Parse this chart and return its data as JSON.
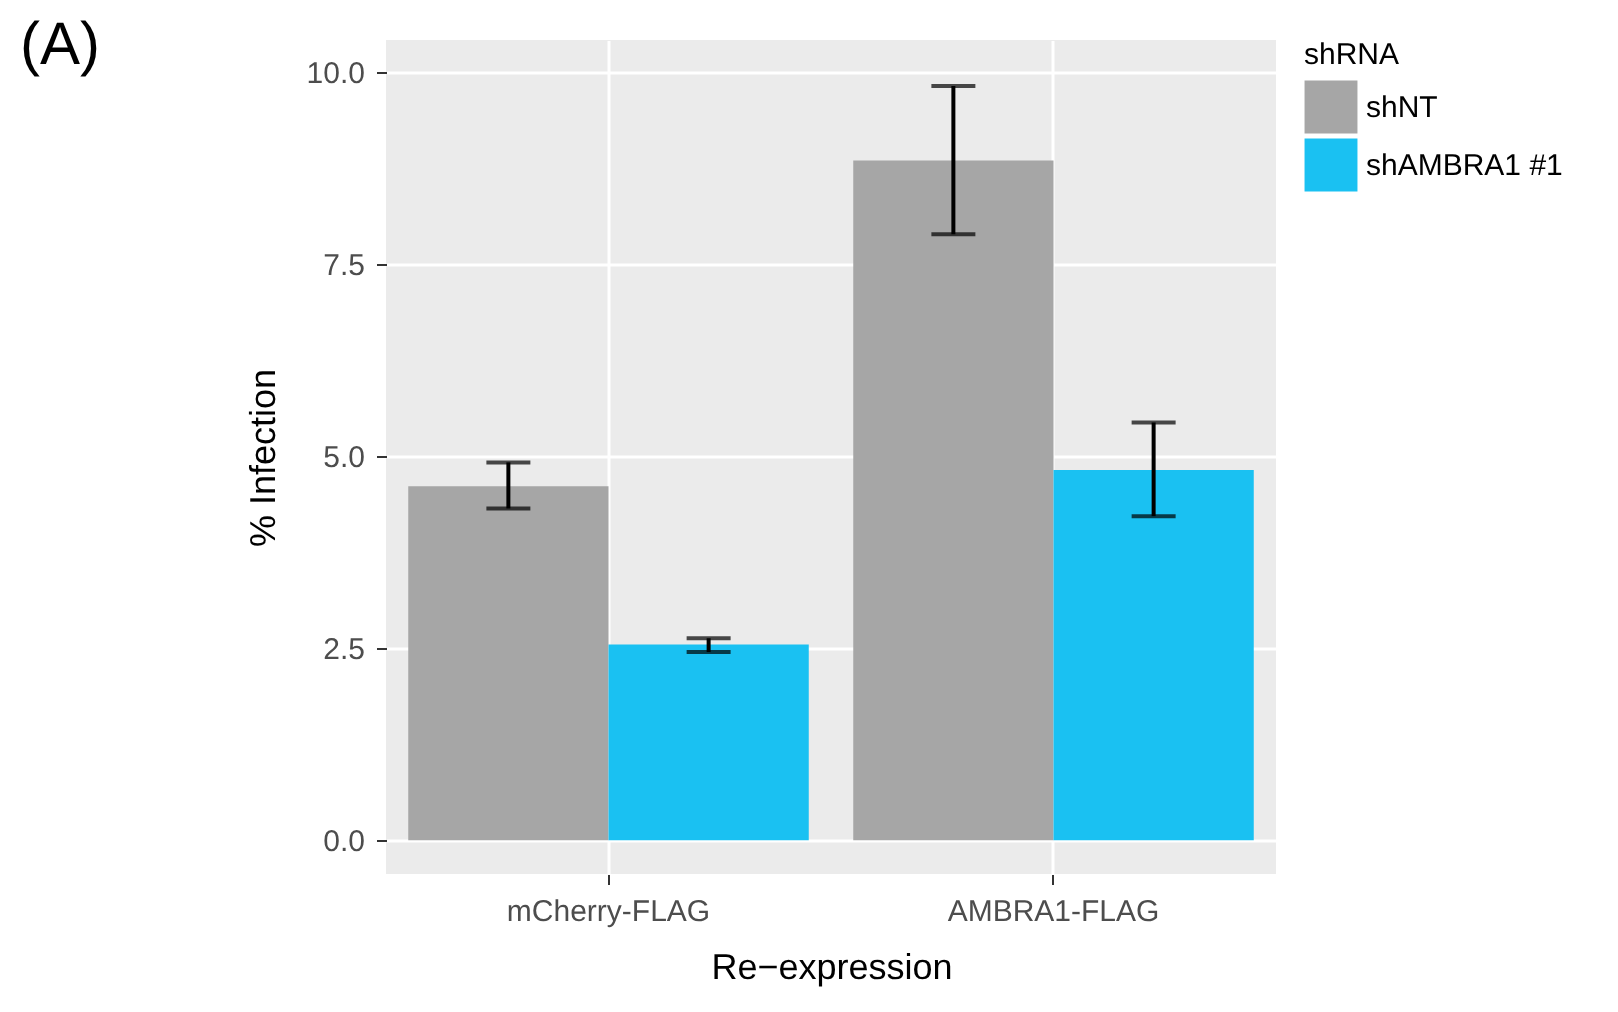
{
  "chart_data": {
    "type": "bar",
    "xlabel": "Re−expression",
    "ylabel": "% Infection",
    "legend_title": "shRNA",
    "annotations": [
      "(A)"
    ],
    "categories": [
      "mCherry-FLAG",
      "AMBRA1-FLAG"
    ],
    "series": [
      {
        "name": "shNT",
        "color": "#a6a6a6",
        "values": [
          4.61,
          8.85
        ],
        "errors": [
          [
            4.32,
            4.92
          ],
          [
            7.89,
            9.82
          ]
        ]
      },
      {
        "name": "shAMBRA1 #1",
        "color": "#1ac1f2",
        "values": [
          2.55,
          4.82
        ],
        "errors": [
          [
            2.45,
            2.63
          ],
          [
            4.22,
            5.44
          ]
        ]
      }
    ],
    "ylim": [
      -0.44,
      10.42
    ],
    "yticks": [
      {
        "value": 0,
        "label": "0.0"
      },
      {
        "value": 2.5,
        "label": "2.5"
      },
      {
        "value": 5,
        "label": "5.0"
      },
      {
        "value": 7.5,
        "label": "7.5"
      },
      {
        "value": 10,
        "label": "10.0"
      }
    ],
    "grid": true,
    "legend": "right"
  }
}
